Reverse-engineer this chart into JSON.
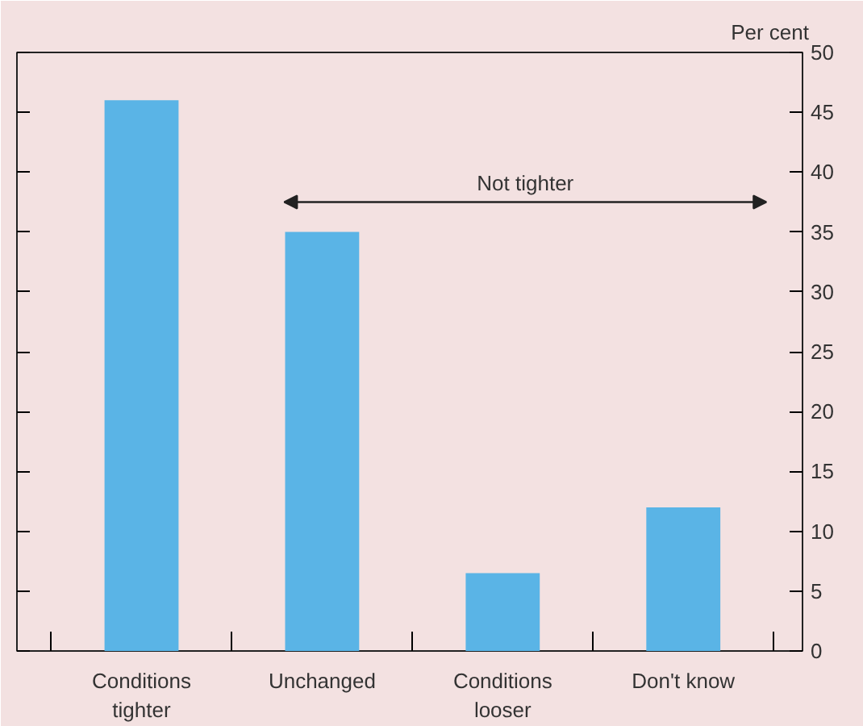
{
  "chart_data": {
    "type": "bar",
    "ylabel": "Per cent",
    "categories": [
      "Conditions\ntighter",
      "Unchanged",
      "Conditions\nlooser",
      "Don't know"
    ],
    "values": [
      46,
      35,
      6.5,
      12
    ],
    "color": "#5ab4e6",
    "ylim": [
      0,
      50
    ],
    "yticks": [
      0,
      5,
      10,
      15,
      20,
      25,
      30,
      35,
      40,
      45,
      50
    ],
    "grid": false,
    "annotations": [
      "Not tighter"
    ]
  }
}
